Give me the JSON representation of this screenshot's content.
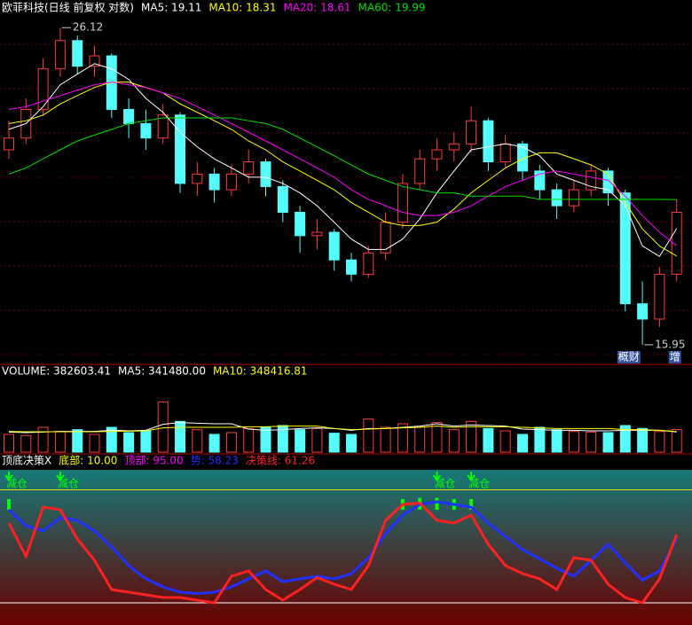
{
  "chart_data": [
    {
      "type": "candlestick",
      "title": "欧菲科技(日线 前复权 对数)",
      "log_scale": true,
      "ylim": [
        15.6,
        26.6
      ],
      "up_color": "#ff3c3c",
      "down_color": "#54fcfc",
      "candles": [
        [
          21.6,
          22.6,
          21.3,
          22.0
        ],
        [
          22.0,
          23.4,
          21.8,
          23.0
        ],
        [
          23.0,
          24.9,
          22.8,
          24.5
        ],
        [
          24.5,
          26.12,
          24.2,
          25.6
        ],
        [
          25.6,
          25.8,
          24.3,
          24.6
        ],
        [
          24.6,
          25.4,
          24.2,
          25.0
        ],
        [
          25.0,
          25.1,
          22.7,
          23.0
        ],
        [
          23.0,
          23.4,
          22.0,
          22.5
        ],
        [
          22.5,
          23.0,
          21.6,
          22.0
        ],
        [
          22.0,
          23.2,
          21.8,
          22.8
        ],
        [
          22.8,
          22.9,
          20.2,
          20.5
        ],
        [
          20.5,
          21.2,
          20.1,
          20.8
        ],
        [
          20.8,
          21.0,
          19.9,
          20.3
        ],
        [
          20.3,
          21.1,
          20.1,
          20.8
        ],
        [
          20.8,
          21.6,
          20.5,
          21.2
        ],
        [
          21.2,
          21.3,
          20.1,
          20.4
        ],
        [
          20.4,
          20.6,
          19.3,
          19.6
        ],
        [
          19.6,
          19.8,
          18.4,
          18.9
        ],
        [
          18.9,
          19.4,
          18.5,
          19.0
        ],
        [
          19.0,
          19.1,
          17.9,
          18.2
        ],
        [
          18.2,
          18.4,
          17.6,
          17.8
        ],
        [
          17.8,
          18.6,
          17.7,
          18.4
        ],
        [
          18.4,
          19.6,
          18.2,
          19.3
        ],
        [
          19.3,
          20.8,
          19.1,
          20.5
        ],
        [
          20.5,
          21.6,
          20.3,
          21.3
        ],
        [
          21.3,
          22.0,
          20.9,
          21.6
        ],
        [
          21.6,
          22.2,
          21.2,
          21.8
        ],
        [
          21.8,
          23.1,
          21.5,
          22.6
        ],
        [
          22.6,
          22.7,
          20.9,
          21.2
        ],
        [
          21.2,
          22.1,
          21.0,
          21.8
        ],
        [
          21.8,
          21.9,
          20.6,
          20.9
        ],
        [
          20.9,
          21.1,
          20.0,
          20.3
        ],
        [
          20.3,
          20.5,
          19.4,
          19.8
        ],
        [
          19.8,
          20.6,
          19.6,
          20.3
        ],
        [
          20.3,
          21.1,
          20.1,
          20.9
        ],
        [
          20.9,
          21.0,
          19.8,
          20.2
        ],
        [
          20.2,
          20.3,
          16.8,
          17.0
        ],
        [
          17.0,
          17.6,
          15.95,
          16.6
        ],
        [
          16.6,
          18.0,
          16.4,
          17.8
        ],
        [
          17.8,
          20.0,
          17.6,
          19.6
        ]
      ],
      "series": [
        {
          "name": "MA5: 19.11",
          "color": "#ffffff",
          "values": [
            22.3,
            22.5,
            23.1,
            23.9,
            24.3,
            24.7,
            24.5,
            24.1,
            23.4,
            22.9,
            22.2,
            21.7,
            21.3,
            21.0,
            20.7,
            20.7,
            20.5,
            20.2,
            19.8,
            19.3,
            18.8,
            18.5,
            18.5,
            18.8,
            19.4,
            20.2,
            20.9,
            21.6,
            21.7,
            21.8,
            21.7,
            21.4,
            20.8,
            20.6,
            20.4,
            20.3,
            19.8,
            18.6,
            18.3,
            19.11
          ]
        },
        {
          "name": "MA10: 18.31",
          "color": "#ffff00",
          "values": [
            22.5,
            22.6,
            22.8,
            23.2,
            23.5,
            23.8,
            24.0,
            24.0,
            23.8,
            23.6,
            23.2,
            22.9,
            22.6,
            22.3,
            21.9,
            21.6,
            21.2,
            20.9,
            20.6,
            20.3,
            19.9,
            19.6,
            19.3,
            19.2,
            19.2,
            19.3,
            19.7,
            20.2,
            20.6,
            21.0,
            21.3,
            21.5,
            21.5,
            21.3,
            21.1,
            20.8,
            19.9,
            19.1,
            18.6,
            18.31
          ]
        },
        {
          "name": "MA20: 18.61",
          "color": "#ff00ff",
          "values": [
            23.0,
            23.1,
            23.3,
            23.5,
            23.7,
            23.9,
            24.0,
            23.9,
            23.8,
            23.6,
            23.4,
            23.1,
            22.8,
            22.5,
            22.2,
            21.9,
            21.6,
            21.3,
            21.0,
            20.7,
            20.3,
            20.0,
            19.8,
            19.6,
            19.5,
            19.5,
            19.6,
            19.8,
            20.1,
            20.4,
            20.6,
            20.8,
            20.9,
            20.8,
            20.7,
            20.6,
            20.1,
            19.5,
            19.0,
            18.61
          ]
        },
        {
          "name": "MA60: 19.99",
          "color": "#00e000",
          "values": [
            20.8,
            21.0,
            21.3,
            21.6,
            21.9,
            22.1,
            22.3,
            22.5,
            22.6,
            22.7,
            22.7,
            22.7,
            22.7,
            22.7,
            22.6,
            22.5,
            22.3,
            22.0,
            21.7,
            21.4,
            21.1,
            20.8,
            20.6,
            20.4,
            20.3,
            20.2,
            20.2,
            20.1,
            20.1,
            20.1,
            20.1,
            20.0,
            20.0,
            20.0,
            20.0,
            20.0,
            20.0,
            20.0,
            20.0,
            19.99
          ]
        }
      ],
      "annotations": [
        {
          "label": "26.12",
          "value": 26.12,
          "at": 3
        },
        {
          "label": "15.95",
          "value": 15.95,
          "at": 37
        }
      ],
      "badges": [
        {
          "label": "概财",
          "at": 36
        },
        {
          "label": "增",
          "at": 39
        }
      ]
    },
    {
      "type": "volume",
      "title": "VOLUME: 382603.41",
      "ylim": [
        0,
        1200000
      ],
      "values": [
        300000,
        280000,
        420000,
        350000,
        380000,
        300000,
        420000,
        330000,
        360000,
        850000,
        520000,
        380000,
        300000,
        330000,
        400000,
        420000,
        450000,
        380000,
        400000,
        320000,
        300000,
        560000,
        420000,
        480000,
        430000,
        500000,
        380000,
        520000,
        400000,
        360000,
        300000,
        420000,
        380000,
        350000,
        340000,
        330000,
        450000,
        400000,
        350000,
        382603.41
      ],
      "series": [
        {
          "name": "MA5: 341480.00",
          "color": "#ffffff",
          "values": [
            340000,
            330000,
            340000,
            350000,
            350000,
            350000,
            370000,
            360000,
            370000,
            470000,
            500000,
            490000,
            480000,
            480000,
            390000,
            370000,
            380000,
            400000,
            410000,
            400000,
            370000,
            400000,
            400000,
            420000,
            440000,
            480000,
            440000,
            460000,
            450000,
            440000,
            390000,
            380000,
            370000,
            370000,
            360000,
            360000,
            370000,
            370000,
            370000,
            341480
          ]
        },
        {
          "name": "MA10: 348416.81",
          "color": "#ffff00",
          "values": [
            350000,
            345000,
            345000,
            345000,
            345000,
            345000,
            350000,
            355000,
            360000,
            410000,
            420000,
            420000,
            420000,
            420000,
            430000,
            430000,
            440000,
            440000,
            440000,
            400000,
            380000,
            390000,
            400000,
            410000,
            420000,
            440000,
            420000,
            430000,
            430000,
            430000,
            420000,
            410000,
            400000,
            400000,
            400000,
            400000,
            380000,
            380000,
            370000,
            348416.81
          ]
        }
      ]
    },
    {
      "type": "indicator",
      "title": "顶底决策X",
      "ylim": [
        0,
        100
      ],
      "levels": [
        {
          "name": "底部: 10.00",
          "value": 10,
          "color": "#ffff00",
          "line_color": "#ffffff"
        },
        {
          "name": "顶部: 95.00",
          "value": 95,
          "color": "#ff00ff",
          "line_color": "#e0e000"
        }
      ],
      "series": [
        {
          "name": "势: 58.23",
          "color": "#2030ff",
          "values": [
            80,
            68,
            64,
            74,
            72,
            64,
            52,
            38,
            28,
            22,
            18,
            17,
            18,
            22,
            28,
            34,
            26,
            28,
            30,
            28,
            32,
            44,
            62,
            76,
            84,
            86,
            84,
            82,
            70,
            60,
            50,
            43,
            36,
            30,
            42,
            54,
            40,
            27,
            34,
            58.23
          ]
        },
        {
          "name": "决策线: 61.26",
          "color": "#ff2020",
          "values": [
            70,
            45,
            82,
            80,
            58,
            42,
            20,
            18,
            16,
            14,
            14,
            12,
            10,
            30,
            34,
            20,
            12,
            20,
            29,
            24,
            20,
            38,
            72,
            84,
            85,
            72,
            70,
            76,
            54,
            38,
            32,
            28,
            20,
            44,
            42,
            24,
            14,
            10,
            28,
            61.26
          ]
        }
      ],
      "bars": [
        88,
        null,
        null,
        null,
        null,
        null,
        null,
        null,
        null,
        null,
        null,
        null,
        null,
        null,
        null,
        null,
        null,
        null,
        null,
        null,
        null,
        null,
        null,
        88,
        89,
        89,
        88,
        88,
        null,
        null,
        null,
        null,
        null,
        null,
        null,
        null,
        null,
        null,
        null,
        null
      ],
      "bar_color": "#00ff00",
      "signals": [
        {
          "label": "减仓",
          "at": 0
        },
        {
          "label": "减仓",
          "at": 3
        },
        {
          "label": "减仓",
          "at": 25
        },
        {
          "label": "减仓",
          "at": 27
        }
      ]
    }
  ]
}
